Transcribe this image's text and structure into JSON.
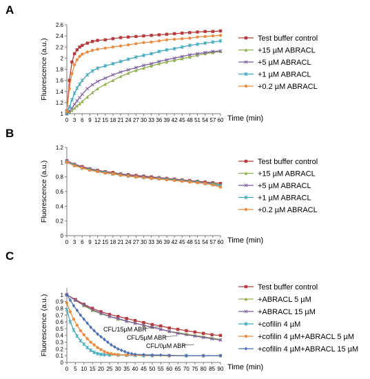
{
  "panel_labels": [
    "A",
    "B",
    "C"
  ],
  "chart_data": [
    {
      "type": "line",
      "panel": "A",
      "xlabel": "Time (min)",
      "ylabel": "Fluorescence (a.u.)",
      "xlim": [
        0,
        60
      ],
      "ylim": [
        1,
        2.6
      ],
      "xticks": [
        0,
        3,
        6,
        9,
        12,
        15,
        18,
        21,
        24,
        27,
        30,
        33,
        36,
        39,
        42,
        45,
        48,
        51,
        54,
        57,
        60
      ],
      "yticks": [
        1,
        1.2,
        1.4,
        1.6,
        1.8,
        2,
        2.2,
        2.4,
        2.6
      ],
      "ytick_labels": [
        "1",
        "1.2",
        "1.4",
        "1.6",
        "1.8",
        "2",
        "2.2",
        "2.4",
        "2.6"
      ],
      "legend_position": "right",
      "series": [
        {
          "name": "Test buffer control",
          "color": "#b83a3a",
          "marker": "square",
          "x": [
            0,
            1,
            2,
            3,
            4,
            5,
            6,
            8,
            10,
            12,
            15,
            18,
            21,
            24,
            27,
            30,
            33,
            36,
            39,
            42,
            45,
            48,
            51,
            54,
            57,
            60
          ],
          "y": [
            1.05,
            1.6,
            1.93,
            2.08,
            2.15,
            2.2,
            2.23,
            2.27,
            2.3,
            2.32,
            2.33,
            2.35,
            2.37,
            2.38,
            2.39,
            2.4,
            2.41,
            2.42,
            2.43,
            2.44,
            2.45,
            2.46,
            2.47,
            2.48,
            2.48,
            2.49
          ]
        },
        {
          "name": "+15 µM ABRACL",
          "color": "#8db048",
          "marker": "triangle",
          "x": [
            0,
            1,
            2,
            3,
            4,
            5,
            6,
            8,
            10,
            12,
            15,
            18,
            21,
            24,
            27,
            30,
            33,
            36,
            39,
            42,
            45,
            48,
            51,
            54,
            57,
            60
          ],
          "y": [
            1.0,
            1.03,
            1.06,
            1.1,
            1.14,
            1.18,
            1.22,
            1.3,
            1.38,
            1.45,
            1.53,
            1.6,
            1.67,
            1.73,
            1.78,
            1.82,
            1.86,
            1.9,
            1.93,
            1.96,
            1.99,
            2.02,
            2.05,
            2.08,
            2.1,
            2.12
          ]
        },
        {
          "name": "+5 µM ABRACL",
          "color": "#7b5ba1",
          "marker": "x",
          "x": [
            0,
            1,
            2,
            3,
            4,
            5,
            6,
            8,
            10,
            12,
            15,
            18,
            21,
            24,
            27,
            30,
            33,
            36,
            39,
            42,
            45,
            48,
            51,
            54,
            57,
            60
          ],
          "y": [
            1.0,
            1.05,
            1.1,
            1.17,
            1.23,
            1.29,
            1.35,
            1.45,
            1.52,
            1.58,
            1.64,
            1.7,
            1.75,
            1.79,
            1.83,
            1.87,
            1.9,
            1.94,
            1.97,
            2.0,
            2.03,
            2.06,
            2.08,
            2.1,
            2.12,
            2.13
          ]
        },
        {
          "name": "+1 µM ABRACL",
          "color": "#3fa9bf",
          "marker": "star",
          "x": [
            0,
            1,
            2,
            3,
            4,
            5,
            6,
            8,
            10,
            12,
            15,
            18,
            21,
            24,
            27,
            30,
            33,
            36,
            39,
            42,
            45,
            48,
            51,
            54,
            57,
            60
          ],
          "y": [
            1.02,
            1.12,
            1.25,
            1.37,
            1.46,
            1.53,
            1.6,
            1.7,
            1.77,
            1.82,
            1.86,
            1.9,
            1.94,
            1.98,
            2.02,
            2.05,
            2.08,
            2.12,
            2.15,
            2.17,
            2.2,
            2.23,
            2.25,
            2.27,
            2.29,
            2.31
          ]
        },
        {
          "name": "+0.2 µM ABRACL",
          "color": "#ee8a3c",
          "marker": "circle",
          "x": [
            0,
            1,
            2,
            3,
            4,
            5,
            6,
            8,
            10,
            12,
            15,
            18,
            21,
            24,
            27,
            30,
            33,
            36,
            39,
            42,
            45,
            48,
            51,
            54,
            57,
            60
          ],
          "y": [
            1.04,
            1.45,
            1.72,
            1.88,
            1.97,
            2.03,
            2.07,
            2.11,
            2.14,
            2.16,
            2.18,
            2.2,
            2.22,
            2.24,
            2.26,
            2.28,
            2.29,
            2.31,
            2.33,
            2.34,
            2.35,
            2.36,
            2.38,
            2.39,
            2.4,
            2.41
          ]
        }
      ]
    },
    {
      "type": "line",
      "panel": "B",
      "xlabel": "Time (min)",
      "ylabel": "Fluorescence (a.u.)",
      "xlim": [
        0,
        60
      ],
      "ylim": [
        0,
        1.2
      ],
      "xticks": [
        0,
        3,
        6,
        9,
        12,
        15,
        18,
        21,
        24,
        27,
        30,
        33,
        36,
        39,
        42,
        45,
        48,
        51,
        54,
        57,
        60
      ],
      "yticks": [
        0,
        0.2,
        0.4,
        0.6,
        0.8,
        1,
        1.2
      ],
      "ytick_labels": [
        "0",
        "0.2",
        "0.4",
        "0.6",
        "0.8",
        "1",
        "1.2"
      ],
      "legend_position": "right",
      "series": [
        {
          "name": "Test buffer control",
          "color": "#b83a3a",
          "marker": "square",
          "x": [
            0,
            3,
            6,
            9,
            12,
            15,
            18,
            21,
            24,
            27,
            30,
            33,
            36,
            39,
            42,
            45,
            48,
            51,
            54,
            57,
            60
          ],
          "y": [
            1.02,
            0.97,
            0.94,
            0.91,
            0.89,
            0.87,
            0.86,
            0.84,
            0.83,
            0.82,
            0.81,
            0.8,
            0.79,
            0.78,
            0.77,
            0.76,
            0.75,
            0.74,
            0.73,
            0.72,
            0.71
          ]
        },
        {
          "name": "+15 µM ABRACL",
          "color": "#8db048",
          "marker": "triangle",
          "x": [
            0,
            3,
            6,
            9,
            12,
            15,
            18,
            21,
            24,
            27,
            30,
            33,
            36,
            39,
            42,
            45,
            48,
            51,
            54,
            57,
            60
          ],
          "y": [
            1.01,
            0.96,
            0.93,
            0.9,
            0.88,
            0.86,
            0.85,
            0.83,
            0.82,
            0.81,
            0.8,
            0.79,
            0.78,
            0.77,
            0.76,
            0.75,
            0.74,
            0.73,
            0.72,
            0.71,
            0.69
          ]
        },
        {
          "name": "+5 µM ABRACL",
          "color": "#7b5ba1",
          "marker": "x",
          "x": [
            0,
            3,
            6,
            9,
            12,
            15,
            18,
            21,
            24,
            27,
            30,
            33,
            36,
            39,
            42,
            45,
            48,
            51,
            54,
            57,
            60
          ],
          "y": [
            1.0,
            0.96,
            0.93,
            0.9,
            0.88,
            0.86,
            0.84,
            0.83,
            0.82,
            0.81,
            0.8,
            0.79,
            0.78,
            0.77,
            0.76,
            0.75,
            0.74,
            0.73,
            0.72,
            0.7,
            0.68
          ]
        },
        {
          "name": "+1 µM ABRACL",
          "color": "#3fa9bf",
          "marker": "star",
          "x": [
            0,
            3,
            6,
            9,
            12,
            15,
            18,
            21,
            24,
            27,
            30,
            33,
            36,
            39,
            42,
            45,
            48,
            51,
            54,
            57,
            60
          ],
          "y": [
            1.01,
            0.96,
            0.92,
            0.9,
            0.88,
            0.86,
            0.84,
            0.83,
            0.81,
            0.8,
            0.79,
            0.78,
            0.78,
            0.77,
            0.76,
            0.75,
            0.74,
            0.73,
            0.71,
            0.7,
            0.68
          ]
        },
        {
          "name": "+0.2 µM ABRACL",
          "color": "#ee8a3c",
          "marker": "circle",
          "x": [
            0,
            3,
            6,
            9,
            12,
            15,
            18,
            21,
            24,
            27,
            30,
            33,
            36,
            39,
            42,
            45,
            48,
            51,
            54,
            57,
            60
          ],
          "y": [
            1.0,
            0.95,
            0.92,
            0.89,
            0.87,
            0.85,
            0.84,
            0.82,
            0.81,
            0.8,
            0.79,
            0.78,
            0.77,
            0.76,
            0.75,
            0.74,
            0.73,
            0.72,
            0.71,
            0.69,
            0.66
          ]
        }
      ]
    },
    {
      "type": "line",
      "panel": "C",
      "xlabel": "Time (min)",
      "ylabel": "Fluorescence (a.u.)",
      "xlim": [
        0,
        90
      ],
      "ylim": [
        0,
        1.1
      ],
      "xticks": [
        0,
        5,
        10,
        15,
        20,
        25,
        30,
        35,
        40,
        45,
        50,
        55,
        60,
        65,
        70,
        75,
        80,
        85,
        90
      ],
      "yticks": [
        0,
        0.1,
        0.2,
        0.3,
        0.4,
        0.5,
        0.6,
        0.7,
        0.8,
        0.9,
        1
      ],
      "ytick_labels": [
        "0",
        "0.1",
        "0.2",
        "0.3",
        "0.4",
        "0.5",
        "0.6",
        "0.7",
        "0.8",
        "0.9",
        "1"
      ],
      "legend_position": "right",
      "annotations": [
        "CFL/15µM ABR",
        "CFL/5µM ABR",
        "CFL/0µM ABR"
      ],
      "series": [
        {
          "name": "Test buffer control",
          "color": "#b83a3a",
          "marker": "square",
          "x": [
            0,
            5,
            10,
            15,
            20,
            25,
            30,
            35,
            40,
            45,
            50,
            55,
            60,
            65,
            70,
            75,
            80,
            85,
            90
          ],
          "y": [
            1.0,
            0.93,
            0.86,
            0.8,
            0.75,
            0.71,
            0.68,
            0.65,
            0.62,
            0.59,
            0.56,
            0.54,
            0.51,
            0.49,
            0.47,
            0.45,
            0.43,
            0.41,
            0.4
          ]
        },
        {
          "name": "+ABRACL 5 µM",
          "color": "#8db048",
          "marker": "triangle",
          "x": [
            0,
            5,
            10,
            15,
            20,
            25,
            30,
            35,
            40,
            45,
            50,
            55,
            60,
            65,
            70,
            75,
            80,
            85,
            90
          ],
          "y": [
            1.0,
            0.92,
            0.84,
            0.77,
            0.72,
            0.68,
            0.64,
            0.61,
            0.58,
            0.55,
            0.52,
            0.49,
            0.46,
            0.44,
            0.42,
            0.4,
            0.38,
            0.36,
            0.34
          ]
        },
        {
          "name": "+ABRACL 15 µM",
          "color": "#7b5ba1",
          "marker": "x",
          "x": [
            0,
            5,
            10,
            15,
            20,
            25,
            30,
            35,
            40,
            45,
            50,
            55,
            60,
            65,
            70,
            75,
            80,
            85,
            90
          ],
          "y": [
            1.0,
            0.92,
            0.85,
            0.78,
            0.73,
            0.68,
            0.65,
            0.61,
            0.58,
            0.55,
            0.52,
            0.49,
            0.46,
            0.43,
            0.41,
            0.39,
            0.37,
            0.35,
            0.33
          ]
        },
        {
          "name": "+cofilin 4 µM",
          "color": "#3fa9bf",
          "marker": "star",
          "x": [
            0,
            2,
            4,
            6,
            8,
            10,
            12,
            14,
            16,
            18,
            20,
            22,
            25,
            30,
            35,
            40,
            45,
            50,
            60,
            70,
            80,
            90
          ],
          "y": [
            0.78,
            0.6,
            0.48,
            0.39,
            0.32,
            0.27,
            0.22,
            0.18,
            0.15,
            0.13,
            0.12,
            0.115,
            0.11,
            0.11,
            0.105,
            0.105,
            0.1,
            0.1,
            0.1,
            0.1,
            0.1,
            0.1
          ]
        },
        {
          "name": "+cofilin 4 µM+ABRACL 5 µM",
          "color": "#ee8a3c",
          "marker": "circle",
          "x": [
            0,
            2,
            4,
            6,
            8,
            10,
            12,
            14,
            16,
            18,
            20,
            22,
            24,
            26,
            28,
            30,
            35,
            40,
            45,
            50,
            60,
            70,
            80,
            90
          ],
          "y": [
            0.88,
            0.75,
            0.64,
            0.55,
            0.47,
            0.41,
            0.35,
            0.3,
            0.26,
            0.22,
            0.19,
            0.16,
            0.14,
            0.13,
            0.12,
            0.115,
            0.11,
            0.11,
            0.105,
            0.105,
            0.1,
            0.1,
            0.1,
            0.1
          ]
        },
        {
          "name": "+cofilin 4 µM+ABRACL 15 µM",
          "color": "#4a6fb8",
          "marker": "diamond",
          "x": [
            0,
            2,
            4,
            6,
            8,
            10,
            12,
            14,
            16,
            18,
            20,
            22,
            24,
            26,
            28,
            30,
            32,
            34,
            36,
            38,
            40,
            45,
            50,
            55,
            60,
            70,
            80,
            90
          ],
          "y": [
            1.0,
            0.92,
            0.84,
            0.77,
            0.7,
            0.64,
            0.58,
            0.52,
            0.47,
            0.42,
            0.38,
            0.34,
            0.3,
            0.26,
            0.23,
            0.2,
            0.18,
            0.16,
            0.14,
            0.13,
            0.12,
            0.115,
            0.11,
            0.11,
            0.105,
            0.1,
            0.1,
            0.1
          ]
        }
      ]
    }
  ]
}
